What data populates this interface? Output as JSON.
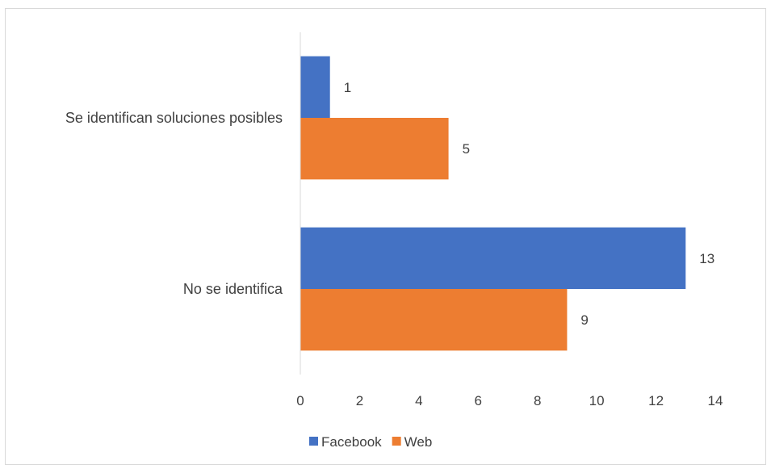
{
  "chart_data": {
    "type": "bar",
    "orientation": "horizontal",
    "categories": [
      "Se identifican soluciones posibles",
      "No se identifica"
    ],
    "series": [
      {
        "name": "Facebook",
        "values": [
          1,
          13
        ],
        "color": "#4472c4"
      },
      {
        "name": "Web",
        "values": [
          5,
          9
        ],
        "color": "#ed7d31"
      }
    ],
    "xlim": [
      0,
      14
    ],
    "xticks": [
      0,
      2,
      4,
      6,
      8,
      10,
      12,
      14
    ],
    "grid": false,
    "data_labels": true,
    "legend_position": "bottom"
  }
}
